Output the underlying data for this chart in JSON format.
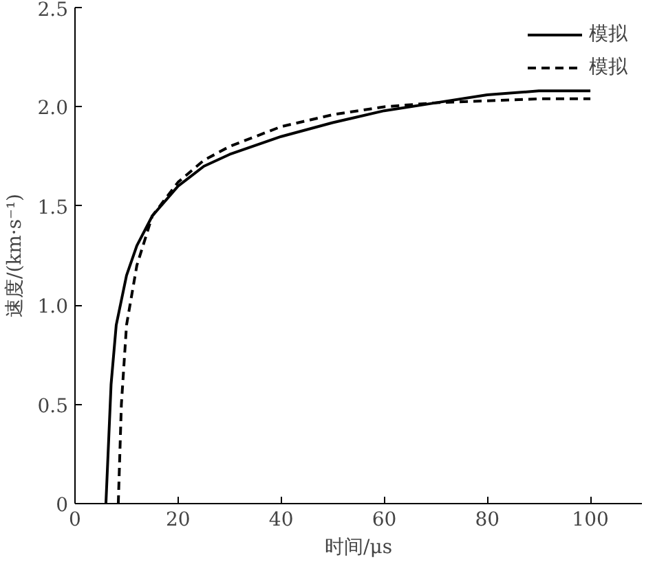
{
  "chart_data": {
    "type": "line",
    "xlabel": "时间/μs",
    "ylabel": "速度/(km·s⁻¹)",
    "xlim": [
      0,
      110
    ],
    "ylim": [
      0,
      2.5
    ],
    "xticks": [
      0,
      20,
      40,
      60,
      80,
      100
    ],
    "yticks": [
      0,
      0.5,
      {
        "value": 1,
        "label": "1.0"
      },
      1.5,
      {
        "value": 2,
        "label": "2.0"
      },
      2.5
    ],
    "grid": false,
    "legend": "top right",
    "marker": "none",
    "series": [
      {
        "name": "模拟",
        "color": "#000000",
        "line_style": "solid",
        "x": [
          6,
          7,
          8,
          10,
          12,
          15,
          20,
          25,
          30,
          40,
          50,
          60,
          70,
          80,
          90,
          100
        ],
        "values": [
          0,
          0.6,
          0.9,
          1.15,
          1.3,
          1.45,
          1.6,
          1.7,
          1.76,
          1.85,
          1.92,
          1.98,
          2.02,
          2.06,
          2.08,
          2.08
        ]
      },
      {
        "name": "模拟",
        "color": "#000000",
        "line_style": "dashed",
        "x": [
          8.4,
          9,
          10,
          12,
          15,
          20,
          25,
          30,
          40,
          50,
          60,
          70,
          80,
          90,
          100
        ],
        "values": [
          0,
          0.5,
          0.9,
          1.2,
          1.45,
          1.62,
          1.73,
          1.8,
          1.9,
          1.96,
          2.0,
          2.02,
          2.03,
          2.04,
          2.04
        ]
      }
    ]
  }
}
